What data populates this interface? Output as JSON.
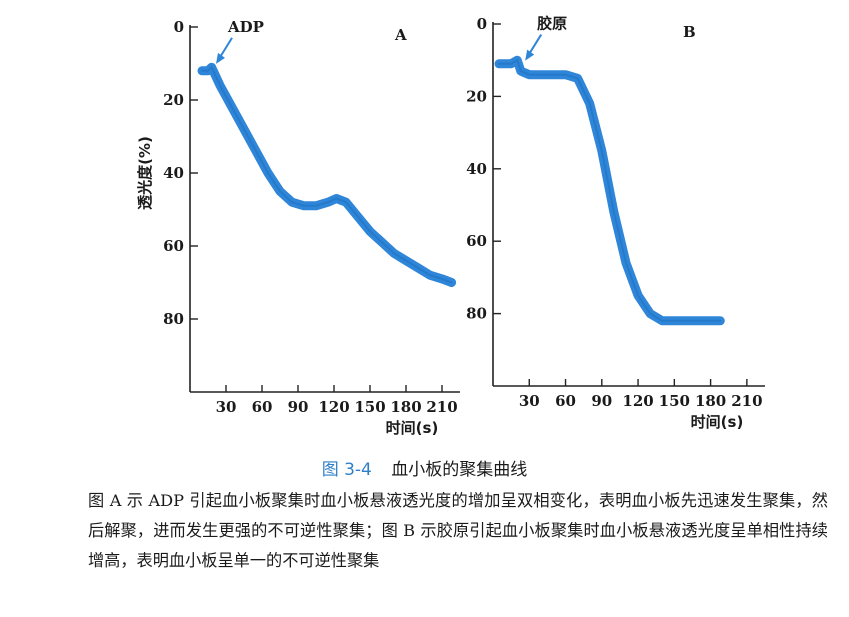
{
  "chart_data": [
    {
      "panel": "A",
      "type": "line",
      "annotation": "ADP",
      "annotation_x": 15,
      "xlabel": "时间(s)",
      "ylabel": "透光度(%)",
      "xticks": [
        30,
        60,
        90,
        120,
        150,
        180,
        210
      ],
      "yticks": [
        0,
        20,
        40,
        60,
        80
      ],
      "xlim": [
        0,
        225
      ],
      "ylim": [
        0,
        100
      ],
      "y_inverted": true,
      "line_color": "#2f86d8",
      "x": [
        10,
        15,
        18,
        25,
        35,
        45,
        55,
        65,
        75,
        85,
        95,
        105,
        115,
        122,
        130,
        140,
        150,
        160,
        170,
        180,
        190,
        200,
        210,
        218
      ],
      "values": [
        12,
        12,
        11,
        16,
        22,
        28,
        34,
        40,
        45,
        48,
        49,
        49,
        48,
        47,
        48,
        52,
        56,
        59,
        62,
        64,
        66,
        68,
        69,
        70
      ]
    },
    {
      "panel": "B",
      "type": "line",
      "annotation": "胶原",
      "annotation_x": 20,
      "xlabel": "时间(s)",
      "ylabel": "",
      "xticks": [
        30,
        60,
        90,
        120,
        150,
        180,
        210
      ],
      "yticks": [
        0,
        20,
        40,
        60,
        80
      ],
      "xlim": [
        0,
        225
      ],
      "ylim": [
        0,
        100
      ],
      "y_inverted": true,
      "line_color": "#2f86d8",
      "x": [
        5,
        10,
        15,
        20,
        23,
        30,
        40,
        50,
        60,
        70,
        80,
        90,
        100,
        110,
        120,
        130,
        140,
        150,
        160,
        170,
        180,
        188
      ],
      "values": [
        11,
        11,
        11,
        10,
        13,
        14,
        14,
        14,
        14,
        15,
        22,
        35,
        52,
        66,
        75,
        80,
        82,
        82,
        82,
        82,
        82,
        82
      ]
    }
  ],
  "caption": {
    "number": "图 3-4",
    "title": "血小板的聚集曲线",
    "text": "图 A 示 ADP 引起血小板聚集时血小板悬液透光度的增加呈双相变化，表明血小板先迅速发生聚集，然后解聚，进而发生更强的不可逆性聚集；图 B 示胶原引起血小板聚集时血小板悬液透光度呈单相性持续增高，表明血小板呈单一的不可逆性聚集"
  }
}
